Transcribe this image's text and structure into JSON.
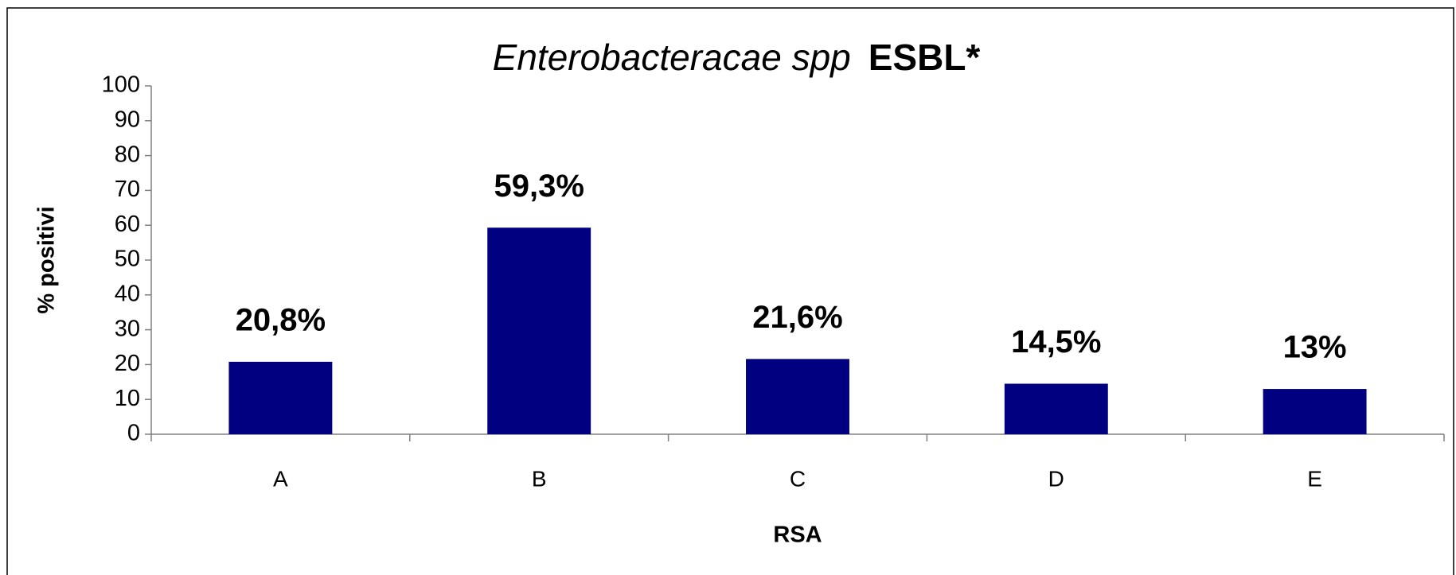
{
  "chart_data": {
    "type": "bar",
    "title": [
      "Enterobacteracae spp",
      "ESBL*"
    ],
    "x_label": "RSA",
    "y_label": "% positivi",
    "categories": [
      "A",
      "B",
      "C",
      "D",
      "E"
    ],
    "values": [
      20.8,
      59.3,
      21.6,
      14.5,
      13
    ],
    "value_labels": [
      "20,8%",
      "59,3%",
      "21,6%",
      "14,5%",
      "13%"
    ],
    "color": "#000080",
    "ylim": [
      0,
      100
    ],
    "yticks": [
      0,
      10,
      20,
      30,
      40,
      50,
      60,
      70,
      80,
      90,
      100
    ],
    "grid": false
  }
}
